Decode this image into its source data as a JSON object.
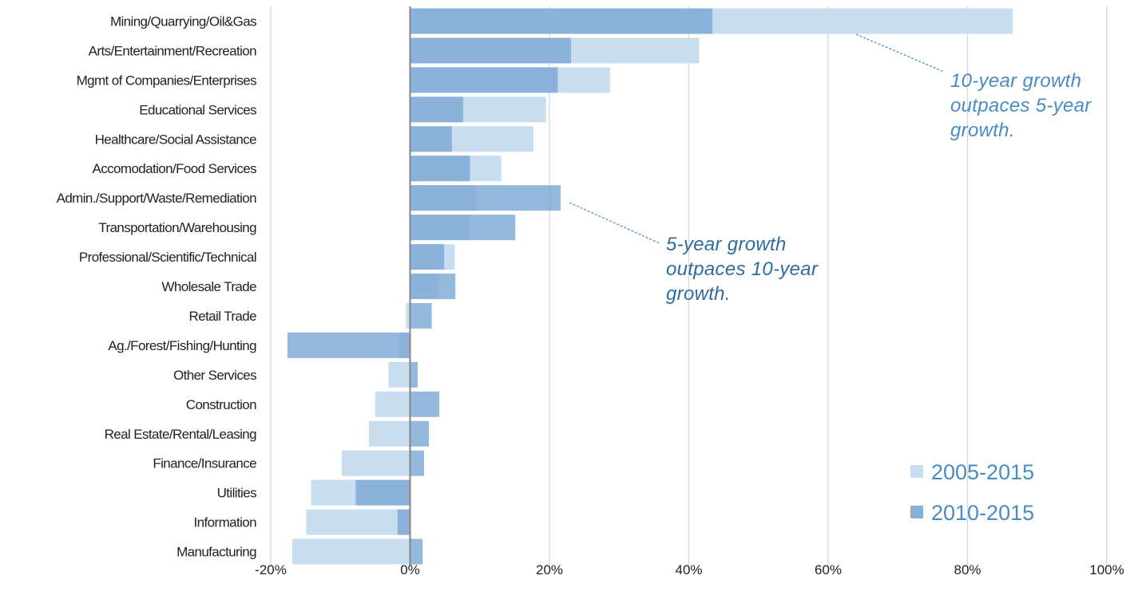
{
  "chart_data": {
    "type": "bar",
    "orientation": "horizontal",
    "overlay": true,
    "categories": [
      "Mining/Quarrying/Oil&Gas",
      "Arts/Entertainment/Recreation",
      "Mgmt of Companies/Enterprises",
      "Educational Services",
      "Healthcare/Social Assistance",
      "Accomodation/Food Services",
      "Admin./Support/Waste/Remediation",
      "Transportation/Warehousing",
      "Professional/Scientific/Technical",
      "Wholesale Trade",
      "Retail Trade",
      "Ag./Forest/Fishing/Hunting",
      "Other Services",
      "Construction",
      "Real Estate/Rental/Leasing",
      "Finance/Insurance",
      "Utilities",
      "Information",
      "Manufacturing"
    ],
    "series": [
      {
        "name": "2005-2015",
        "color": "#c9ddf1",
        "values": [
          86.5,
          41.5,
          28.7,
          19.5,
          17.7,
          13.1,
          9.6,
          8.6,
          6.4,
          4.1,
          -0.6,
          -1.6,
          -3.1,
          -5.0,
          -5.9,
          -9.8,
          -14.2,
          -14.9,
          -16.9
        ]
      },
      {
        "name": "2010-2015",
        "color": "#7ba7d4",
        "values": [
          43.4,
          23.1,
          21.2,
          7.6,
          6.0,
          8.6,
          21.6,
          15.1,
          4.9,
          6.5,
          3.1,
          -17.6,
          1.1,
          4.2,
          2.7,
          2.0,
          -7.8,
          -1.8,
          1.8
        ]
      }
    ],
    "xticks": [
      "-20%",
      "0%",
      "20%",
      "40%",
      "60%",
      "80%",
      "100%"
    ],
    "xlim": [
      -20,
      100
    ],
    "grid": "vertical",
    "legend_position": "bottom-right",
    "annotations": [
      {
        "lines": [
          "10-year growth",
          "outpaces 5-year",
          "growth."
        ],
        "color": "#4a8bc4"
      },
      {
        "lines": [
          "5-year growth",
          "outpaces 10-year",
          "growth."
        ],
        "color": "#2f6c9e"
      }
    ]
  },
  "legend": {
    "items": [
      {
        "label": "2005-2015",
        "color": "#c9ddf1"
      },
      {
        "label": "2010-2015",
        "color": "#88afd6"
      }
    ]
  },
  "colors": {
    "grid": "#d9d9d9",
    "zero_axis": "#8c8c8c",
    "leader_line": "#4a8bc4"
  }
}
